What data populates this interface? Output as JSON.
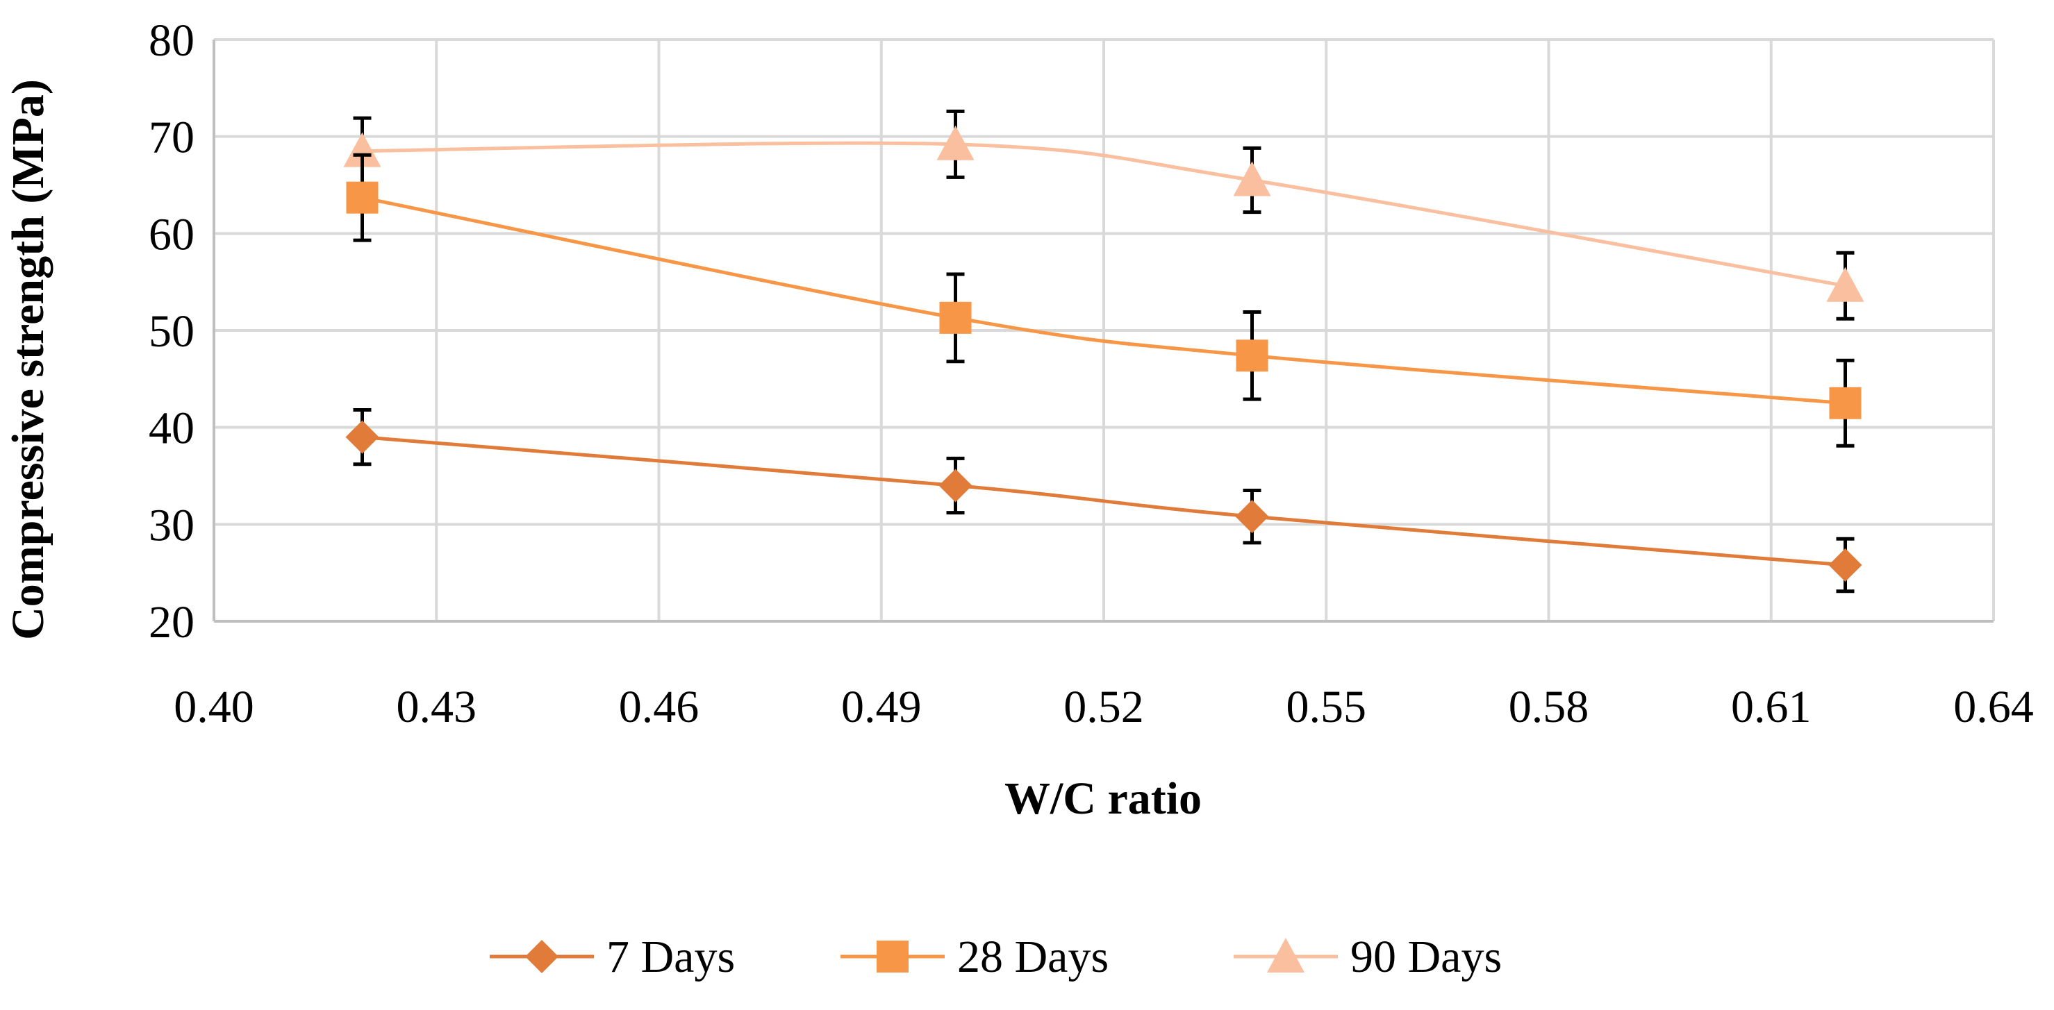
{
  "chart_data": {
    "type": "line",
    "title": "",
    "xlabel": "W/C ratio",
    "ylabel": "Compressive strength (MPa)",
    "xlim": [
      0.4,
      0.64
    ],
    "ylim": [
      20,
      80
    ],
    "x_ticks": [
      0.4,
      0.43,
      0.46,
      0.49,
      0.52,
      0.55,
      0.58,
      0.61,
      0.64
    ],
    "x_tick_labels": [
      "0.40",
      "0.43",
      "0.46",
      "0.49",
      "0.52",
      "0.55",
      "0.58",
      "0.61",
      "0.64"
    ],
    "y_ticks": [
      20,
      30,
      40,
      50,
      60,
      70,
      80
    ],
    "y_tick_labels": [
      "20",
      "30",
      "40",
      "50",
      "60",
      "70",
      "80"
    ],
    "grid": true,
    "legend_position": "bottom",
    "x": [
      0.42,
      0.5,
      0.54,
      0.62
    ],
    "series": [
      {
        "name": "7 Days",
        "values": [
          39.0,
          34.0,
          30.8,
          25.8
        ],
        "errors": [
          2.8,
          2.8,
          2.7,
          2.7
        ],
        "marker": "diamond",
        "color": "#E07B39"
      },
      {
        "name": "28 Days",
        "values": [
          63.7,
          51.3,
          47.4,
          42.5
        ],
        "errors": [
          4.4,
          4.5,
          4.5,
          4.4
        ],
        "marker": "square",
        "color": "#F79646"
      },
      {
        "name": "90 Days",
        "values": [
          68.5,
          69.2,
          65.5,
          54.6
        ],
        "errors": [
          3.4,
          3.4,
          3.3,
          3.4
        ],
        "marker": "triangle",
        "color": "#F9BF9F"
      }
    ]
  }
}
